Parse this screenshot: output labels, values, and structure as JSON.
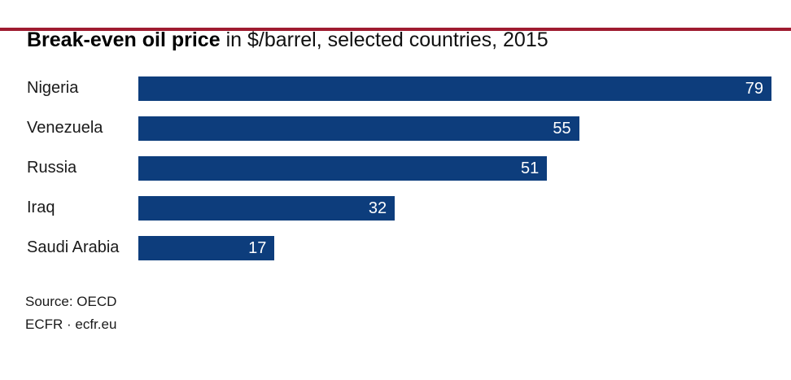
{
  "page": {
    "background": "#ffffff",
    "accent_rule_color": "#9e1b30"
  },
  "header": {
    "title_bold": "Break-even oil price",
    "title_rest": " in $/barrel, selected countries, 2015"
  },
  "chart_data": {
    "type": "bar",
    "orientation": "horizontal",
    "title": "Break-even oil price in $/barrel, selected countries, 2015",
    "categories": [
      "Nigeria",
      "Venezuela",
      "Russia",
      "Iraq",
      "Saudi Arabia"
    ],
    "values": [
      79,
      55,
      51,
      32,
      17
    ],
    "value_labels": [
      "79",
      "55",
      "51",
      "32",
      "17"
    ],
    "xlabel": "",
    "ylabel": "",
    "xlim": [
      0,
      79
    ],
    "grid": false,
    "legend": false,
    "bar_color": "#0d3d7c",
    "value_label_color": "#ffffff",
    "label_color": "#1a1a1a"
  },
  "footer": {
    "source": "Source: OECD",
    "brand": "ECFR · ecfr.eu"
  }
}
